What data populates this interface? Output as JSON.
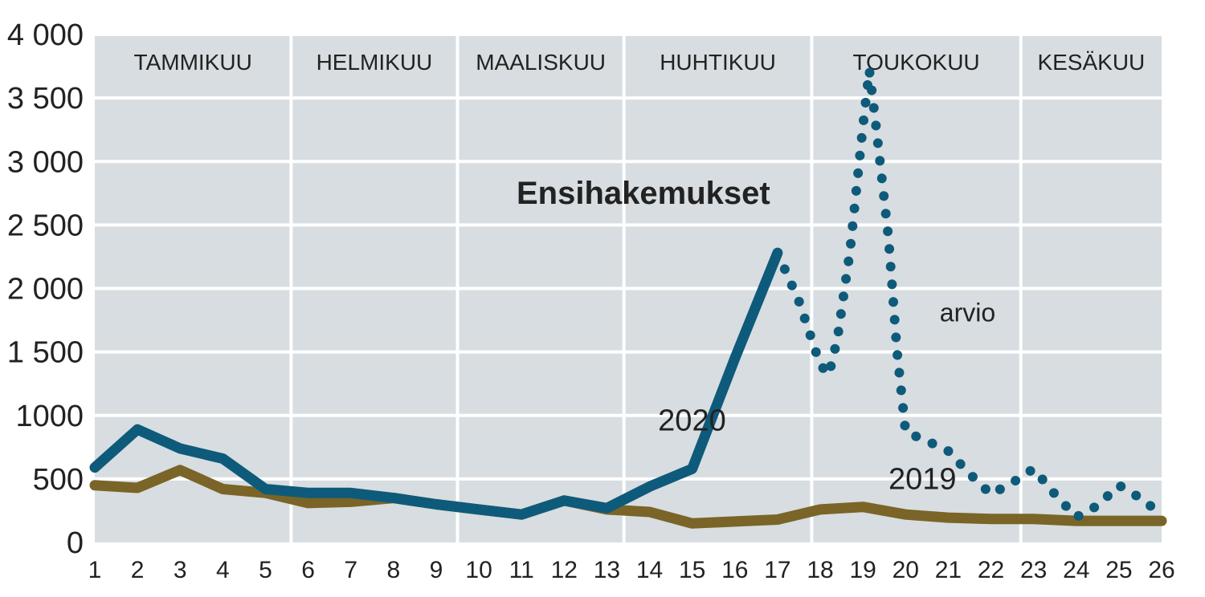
{
  "chart_data": {
    "type": "line",
    "title": "Ensihakemukset",
    "x": [
      1,
      2,
      3,
      4,
      5,
      6,
      7,
      8,
      9,
      10,
      11,
      12,
      13,
      14,
      15,
      16,
      17,
      18,
      19,
      20,
      21,
      22,
      23,
      24,
      25,
      26
    ],
    "xlim": [
      1,
      26
    ],
    "ylim": [
      0,
      4000
    ],
    "yticks": [
      0,
      500,
      1000,
      1500,
      2000,
      2500,
      3000,
      3500,
      4000
    ],
    "ytick_labels": [
      "0",
      "500",
      "1000",
      "1 500",
      "2 000",
      "2 500",
      "3 000",
      "3 500",
      "4 000"
    ],
    "xtick_labels": [
      "1",
      "2",
      "3",
      "4",
      "5",
      "6",
      "7",
      "8",
      "9",
      "10",
      "11",
      "12",
      "13",
      "14",
      "15",
      "16",
      "17",
      "18",
      "19",
      "20",
      "21",
      "22",
      "23",
      "24",
      "25",
      "26"
    ],
    "grid": true,
    "months": [
      {
        "label": "TAMMIKUU",
        "start": 1,
        "end": 5.6
      },
      {
        "label": "HELMIKUU",
        "start": 5.6,
        "end": 9.5
      },
      {
        "label": "MAALISKUU",
        "start": 9.5,
        "end": 13.4
      },
      {
        "label": "HUHTIKUU",
        "start": 13.4,
        "end": 17.8
      },
      {
        "label": "TOUKOKUU",
        "start": 17.8,
        "end": 22.7
      },
      {
        "label": "KESÄKUU",
        "start": 22.7,
        "end": 26
      }
    ],
    "series": [
      {
        "name": "2019",
        "color": "#7a6428",
        "style": "solid",
        "points": [
          [
            1,
            450
          ],
          [
            2,
            430
          ],
          [
            3,
            570
          ],
          [
            4,
            420
          ],
          [
            5,
            390
          ],
          [
            6,
            310
          ],
          [
            7,
            320
          ],
          [
            8,
            350
          ],
          [
            9,
            300
          ],
          [
            10,
            260
          ],
          [
            11,
            220
          ],
          [
            12,
            330
          ],
          [
            13,
            260
          ],
          [
            14,
            240
          ],
          [
            15,
            150
          ],
          [
            16,
            165
          ],
          [
            17,
            180
          ],
          [
            18,
            260
          ],
          [
            19,
            280
          ],
          [
            20,
            220
          ],
          [
            21,
            195
          ],
          [
            22,
            185
          ],
          [
            23,
            185
          ],
          [
            24,
            170
          ],
          [
            25,
            170
          ],
          [
            26,
            170
          ]
        ]
      },
      {
        "name": "2020",
        "color": "#0e5a7a",
        "style": "solid",
        "points": [
          [
            1,
            590
          ],
          [
            2,
            890
          ],
          [
            3,
            740
          ],
          [
            4,
            660
          ],
          [
            5,
            420
          ],
          [
            6,
            390
          ],
          [
            7,
            390
          ],
          [
            8,
            350
          ],
          [
            9,
            300
          ],
          [
            10,
            260
          ],
          [
            11,
            220
          ],
          [
            12,
            330
          ],
          [
            13,
            270
          ],
          [
            14,
            440
          ],
          [
            15,
            580
          ],
          [
            16,
            1450
          ],
          [
            17,
            2280
          ]
        ]
      },
      {
        "name": "arvio",
        "color": "#0e5a7a",
        "style": "dotted",
        "points": [
          [
            17,
            2280
          ],
          [
            17.5,
            1900
          ],
          [
            18,
            1400
          ],
          [
            18.2,
            1320
          ],
          [
            18.4,
            1600
          ],
          [
            18.7,
            2300
          ],
          [
            19,
            3280
          ],
          [
            19.15,
            3720
          ],
          [
            19.3,
            3300
          ],
          [
            19.6,
            2400
          ],
          [
            19.8,
            1500
          ],
          [
            20,
            870
          ],
          [
            20.5,
            800
          ],
          [
            21,
            720
          ],
          [
            21.5,
            540
          ],
          [
            22,
            380
          ],
          [
            22.5,
            470
          ],
          [
            23,
            580
          ],
          [
            23.5,
            380
          ],
          [
            24,
            200
          ],
          [
            24.5,
            290
          ],
          [
            25,
            450
          ],
          [
            25.5,
            350
          ],
          [
            26,
            220
          ]
        ]
      }
    ],
    "annotations": [
      {
        "text": "2020",
        "x": 14.2,
        "y": 880
      },
      {
        "text": "2019",
        "x": 19.6,
        "y": 420
      },
      {
        "text": "arvio",
        "x": 20.8,
        "y": 1740
      }
    ]
  }
}
